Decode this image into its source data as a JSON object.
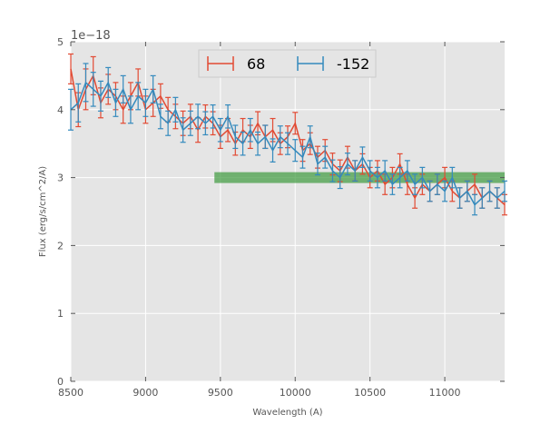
{
  "chart_data": {
    "type": "line",
    "title": "",
    "xlabel": "Wavelength (A)",
    "ylabel": "Flux (erg/s/cm^2/A)",
    "xlim": [
      8500,
      11400
    ],
    "ylim": [
      0,
      5
    ],
    "y_offset_label": "1e−18",
    "x_ticks": [
      8500,
      9000,
      9500,
      10000,
      10500,
      11000
    ],
    "x_tick_labels": [
      "8500",
      "9000",
      "9500",
      "10000",
      "10500",
      "11000"
    ],
    "y_ticks": [
      0,
      1,
      2,
      3,
      4,
      5
    ],
    "y_tick_labels": [
      "0",
      "1",
      "2",
      "3",
      "4",
      "5"
    ],
    "grid": true,
    "legend_position": "top-center",
    "series": [
      {
        "name": "68",
        "color": "#e24a33",
        "x": [
          8500,
          8550,
          8600,
          8650,
          8700,
          8750,
          8800,
          8850,
          8900,
          8950,
          9000,
          9050,
          9100,
          9150,
          9200,
          9250,
          9300,
          9350,
          9400,
          9450,
          9500,
          9550,
          9600,
          9650,
          9700,
          9750,
          9800,
          9850,
          9900,
          9950,
          10000,
          10050,
          10100,
          10150,
          10200,
          10250,
          10300,
          10350,
          10400,
          10450,
          10500,
          10550,
          10600,
          10650,
          10700,
          10750,
          10800,
          10850,
          10900,
          10950,
          11000,
          11050,
          11100,
          11150,
          11200,
          11250,
          11300,
          11350,
          11400
        ],
        "values": [
          4.6,
          4.0,
          4.3,
          4.5,
          4.1,
          4.3,
          4.2,
          4.0,
          4.2,
          4.4,
          4.0,
          4.1,
          4.2,
          4.0,
          3.9,
          3.8,
          3.9,
          3.7,
          3.9,
          3.8,
          3.6,
          3.7,
          3.5,
          3.7,
          3.6,
          3.8,
          3.6,
          3.7,
          3.5,
          3.6,
          3.8,
          3.4,
          3.5,
          3.3,
          3.4,
          3.2,
          3.1,
          3.3,
          3.1,
          3.2,
          3.0,
          3.1,
          2.9,
          3.0,
          3.2,
          2.9,
          2.7,
          2.9,
          2.8,
          2.9,
          3.0,
          2.8,
          2.7,
          2.8,
          2.9,
          2.7,
          2.8,
          2.7,
          2.6
        ],
        "errors": [
          0.22,
          0.25,
          0.3,
          0.28,
          0.22,
          0.22,
          0.2,
          0.2,
          0.2,
          0.2,
          0.2,
          0.2,
          0.18,
          0.18,
          0.18,
          0.18,
          0.18,
          0.18,
          0.17,
          0.17,
          0.17,
          0.17,
          0.17,
          0.17,
          0.17,
          0.17,
          0.17,
          0.17,
          0.16,
          0.16,
          0.16,
          0.16,
          0.16,
          0.16,
          0.16,
          0.16,
          0.16,
          0.16,
          0.15,
          0.15,
          0.15,
          0.15,
          0.15,
          0.15,
          0.15,
          0.15,
          0.15,
          0.15,
          0.15,
          0.15,
          0.15,
          0.15,
          0.15,
          0.15,
          0.15,
          0.15,
          0.15,
          0.15,
          0.15
        ]
      },
      {
        "name": "-152",
        "color": "#348abd",
        "x": [
          8500,
          8550,
          8600,
          8650,
          8700,
          8750,
          8800,
          8850,
          8900,
          8950,
          9000,
          9050,
          9100,
          9150,
          9200,
          9250,
          9300,
          9350,
          9400,
          9450,
          9500,
          9550,
          9600,
          9650,
          9700,
          9750,
          9800,
          9850,
          9900,
          9950,
          10000,
          10050,
          10100,
          10150,
          10200,
          10250,
          10300,
          10350,
          10400,
          10450,
          10500,
          10550,
          10600,
          10650,
          10700,
          10750,
          10800,
          10850,
          10900,
          10950,
          11000,
          11050,
          11100,
          11150,
          11200,
          11250,
          11300,
          11350,
          11400
        ],
        "values": [
          4.0,
          4.1,
          4.4,
          4.3,
          4.2,
          4.4,
          4.1,
          4.3,
          4.0,
          4.2,
          4.1,
          4.3,
          3.9,
          3.8,
          4.0,
          3.7,
          3.8,
          3.9,
          3.8,
          3.9,
          3.7,
          3.9,
          3.6,
          3.5,
          3.7,
          3.5,
          3.6,
          3.4,
          3.6,
          3.5,
          3.4,
          3.3,
          3.6,
          3.2,
          3.3,
          3.1,
          3.0,
          3.2,
          3.1,
          3.3,
          3.1,
          3.0,
          3.1,
          2.9,
          3.0,
          3.1,
          2.9,
          3.0,
          2.8,
          2.9,
          2.8,
          3.0,
          2.7,
          2.8,
          2.6,
          2.7,
          2.8,
          2.7,
          2.8
        ],
        "errors": [
          0.3,
          0.28,
          0.28,
          0.25,
          0.22,
          0.22,
          0.2,
          0.2,
          0.2,
          0.2,
          0.2,
          0.2,
          0.18,
          0.18,
          0.18,
          0.18,
          0.18,
          0.18,
          0.17,
          0.17,
          0.17,
          0.17,
          0.17,
          0.17,
          0.17,
          0.17,
          0.17,
          0.17,
          0.16,
          0.16,
          0.16,
          0.16,
          0.16,
          0.16,
          0.16,
          0.16,
          0.16,
          0.16,
          0.15,
          0.15,
          0.15,
          0.15,
          0.15,
          0.15,
          0.15,
          0.15,
          0.15,
          0.15,
          0.15,
          0.15,
          0.15,
          0.15,
          0.15,
          0.15,
          0.15,
          0.15,
          0.15,
          0.15,
          0.15
        ]
      }
    ],
    "band": {
      "x_start": 9460,
      "x_end": 11400,
      "y_low": 2.92,
      "y_high": 3.08,
      "color": "#3d9a3d",
      "opacity": 0.7
    }
  }
}
